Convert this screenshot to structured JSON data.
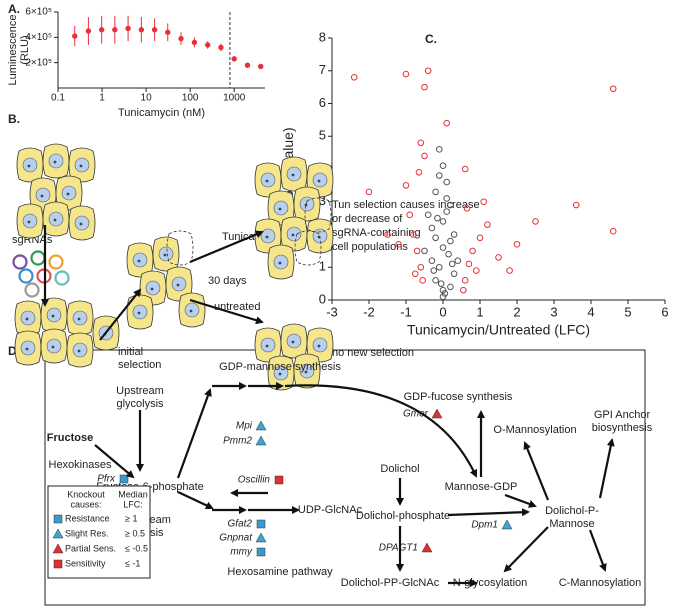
{
  "panel_labels": [
    "A.",
    "B.",
    "C.",
    "D."
  ],
  "chart_data": [
    {
      "type": "scatter",
      "xlabel": "Tunicamycin (nM)",
      "ylabel": [
        "Luminescence",
        "(RLU)"
      ],
      "xscale": "log",
      "xlim": [
        0.1,
        5000
      ],
      "xticks": [
        0.1,
        1,
        10,
        100,
        1000
      ],
      "ylim": [
        0,
        600000
      ],
      "yticks": [
        {
          "value": 200000,
          "label": "2×10⁵"
        },
        {
          "value": 400000,
          "label": "4×10⁵"
        },
        {
          "value": 600000,
          "label": "6×10⁵"
        }
      ],
      "vline": 800,
      "series": [
        {
          "color": "#e8303a",
          "x": [
            0.24,
            0.49,
            0.98,
            1.95,
            3.9,
            7.8,
            15.6,
            31,
            62,
            125,
            250,
            500,
            1000,
            2000,
            4000
          ],
          "values": [
            410000,
            450000,
            460000,
            460000,
            470000,
            460000,
            460000,
            440000,
            390000,
            360000,
            340000,
            320000,
            230000,
            180000,
            170000
          ],
          "errors": [
            80000,
            110000,
            110000,
            110000,
            100000,
            100000,
            90000,
            70000,
            50000,
            40000,
            30000,
            30000,
            20000,
            20000,
            20000
          ]
        }
      ]
    },
    {
      "type": "scatter",
      "xlabel": "Tunicamycin/Untreated (LFC)",
      "ylabel": [
        "-Log(p-value)"
      ],
      "xlim": [
        -3,
        6
      ],
      "xticks": [
        -3,
        -2,
        -1,
        0,
        1,
        2,
        3,
        4,
        5,
        6
      ],
      "ylim": [
        0,
        8
      ],
      "yticks": [
        0,
        1,
        2,
        3,
        4,
        5,
        6,
        7,
        8
      ],
      "series": [
        {
          "color": "#555555",
          "x": [
            -0.5,
            -0.3,
            -0.2,
            -0.1,
            0,
            0.1,
            0.2,
            0.3,
            -0.4,
            0.4,
            -0.2,
            0,
            0.2,
            -0.1,
            0.1,
            0,
            -0.3,
            0.3,
            0,
            -0.2,
            0.2,
            0.05,
            -0.05,
            0.15,
            -0.15,
            0,
            0.1,
            -0.1,
            0.25,
            -0.25
          ],
          "values": [
            1.5,
            2.2,
            3.3,
            1.0,
            0.3,
            2.7,
            1.8,
            0.8,
            2.6,
            1.2,
            0.6,
            1.6,
            0.4,
            3.8,
            3.1,
            0.1,
            1.2,
            2.0,
            2.4,
            1.9,
            2.9,
            0.2,
            0.5,
            1.4,
            2.5,
            4.1,
            3.6,
            4.6,
            1.1,
            0.9
          ]
        },
        {
          "color": "#e8303a",
          "x": [
            -2.4,
            -1.0,
            -0.4,
            -0.5,
            0.1,
            -0.6,
            -2.0,
            -1.0,
            -0.9,
            -0.8,
            -0.7,
            -0.6,
            -0.55,
            -1.2,
            -1.5,
            0.6,
            0.7,
            0.8,
            0.9,
            1.0,
            1.2,
            1.5,
            2.0,
            2.5,
            3.6,
            4.6,
            4.6,
            0.55,
            0.65,
            -0.65,
            -0.75,
            1.1,
            1.8,
            -0.5,
            0.6
          ],
          "values": [
            6.8,
            6.9,
            7.0,
            6.5,
            5.4,
            4.8,
            3.3,
            3.5,
            2.6,
            2.0,
            1.5,
            1.0,
            0.6,
            1.7,
            2.0,
            0.6,
            1.1,
            1.5,
            0.9,
            1.9,
            2.3,
            1.3,
            1.7,
            2.4,
            2.9,
            6.45,
            2.1,
            0.3,
            2.8,
            3.9,
            0.8,
            3.0,
            0.9,
            4.4,
            4.0
          ]
        }
      ]
    }
  ],
  "panel_b": {
    "sgrnas": "sgRNAs",
    "initial": [
      "initial",
      "selection"
    ],
    "tun": "Tunicamycin",
    "days": "30 days",
    "untreated": "untreated",
    "tun_result": [
      "Tun selection causes increase",
      "or decrease of",
      "sgRNA-containing",
      "cell populations"
    ],
    "no_selection": "no new selection"
  },
  "panel_d": {
    "nodes": [
      {
        "lines": [
          "Fructose"
        ],
        "color": "#2e7d32",
        "bold": true
      },
      {
        "lines": [
          "Hexokinases"
        ],
        "color": "#111"
      },
      {
        "lines": [
          "Upstream",
          "glycolysis"
        ],
        "color": "#1a2aa8"
      },
      {
        "lines": [
          "Fructose-6-phosphate"
        ],
        "color": "#111"
      },
      {
        "lines": [
          "GDP-mannose synthesis"
        ],
        "color": "#1a2aa8"
      },
      {
        "lines": [
          "Downstream",
          "glycolysis"
        ],
        "color": "#1a2aa8"
      },
      {
        "lines": [
          "Hexosamine pathway"
        ],
        "color": "#1a2aa8"
      },
      {
        "lines": [
          "UDP-GlcNAc"
        ],
        "color": "#111"
      },
      {
        "lines": [
          "Dolichol"
        ],
        "color": "#111"
      },
      {
        "lines": [
          "Dolichol-phosphate"
        ],
        "color": "#111"
      },
      {
        "lines": [
          "Dolichol-PP-GlcNAc"
        ],
        "color": "#111"
      },
      {
        "lines": [
          "N-glycosylation"
        ],
        "color": "#1a2aa8"
      },
      {
        "lines": [
          "GDP-fucose synthesis"
        ],
        "color": "#1a2aa8"
      },
      {
        "lines": [
          "Mannose-GDP"
        ],
        "color": "#111"
      },
      {
        "lines": [
          "O-Mannosylation"
        ],
        "color": "#1a2aa8"
      },
      {
        "lines": [
          "GPI Anchor",
          "biosynthesis"
        ],
        "color": "#1a2aa8"
      },
      {
        "lines": [
          "Dolichol-P-",
          "Mannose"
        ],
        "color": "#111"
      },
      {
        "lines": [
          "C-Mannosylation"
        ],
        "color": "#1a2aa8"
      }
    ],
    "genes": [
      {
        "name": "Mpi",
        "shape": "triangle",
        "color": "#3aa6d0"
      },
      {
        "name": "Pmm2",
        "shape": "triangle",
        "color": "#3aa6d0"
      },
      {
        "name": "Oscillin",
        "shape": "square",
        "color": "#e03030"
      },
      {
        "name": "Pfrx",
        "shape": "square",
        "color": "#3a9ad0"
      },
      {
        "name": "Pfk",
        "shape": "square",
        "color": "#3a9ad0"
      },
      {
        "name": "Gfat2",
        "shape": "square",
        "color": "#3a9ad0"
      },
      {
        "name": "Gnpnat",
        "shape": "triangle",
        "color": "#3aa6d0"
      },
      {
        "name": "mmy",
        "shape": "square",
        "color": "#3a9ad0"
      },
      {
        "name": "DPAGT1",
        "shape": "triangle",
        "color": "#e03030"
      },
      {
        "name": "Gmer",
        "shape": "triangle",
        "color": "#e03030"
      },
      {
        "name": "Dpm1",
        "shape": "triangle",
        "color": "#3aa6d0"
      }
    ],
    "legend": {
      "header": [
        "Knockout",
        "causes:"
      ],
      "header2": [
        "Median",
        "LFC:"
      ],
      "rows": [
        {
          "label": "Resistance",
          "shape": "square",
          "color": "#3a9ad0",
          "threshold": "≥ 1"
        },
        {
          "label": "Slight Res.",
          "shape": "triangle",
          "color": "#3aa6d0",
          "threshold": "≥ 0.5"
        },
        {
          "label": "Partial Sens.",
          "shape": "triangle",
          "color": "#e03030",
          "threshold": "≤ -0.5"
        },
        {
          "label": "Sensitivity",
          "shape": "square",
          "color": "#e03030",
          "threshold": "≤ -1"
        }
      ]
    }
  }
}
